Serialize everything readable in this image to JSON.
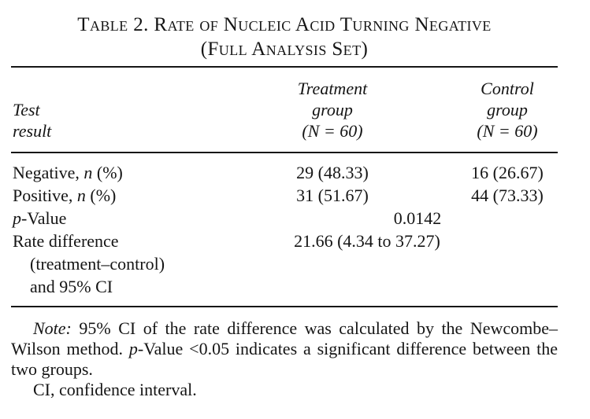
{
  "title": {
    "line1": "Table 2. Rate of Nucleic Acid Turning Negative",
    "line2": "(Full Analysis Set)"
  },
  "header": {
    "test_line1": "Test",
    "test_line2": "result",
    "treatment_line1": "Treatment",
    "treatment_line2": "group",
    "treatment_line3": "(N = 60)",
    "control_line1": "Control",
    "control_line2": "group",
    "control_line3": "(N = 60)"
  },
  "rows": {
    "negative": {
      "pre": "Negative, ",
      "it": "n",
      "post": " (%)",
      "treatment": "29 (48.33)",
      "control": "16 (26.67)"
    },
    "positive": {
      "pre": "Positive, ",
      "it": "n",
      "post": " (%)",
      "treatment": "31 (51.67)",
      "control": "44 (73.33)"
    },
    "pvalue": {
      "it": "p",
      "post": "-Value",
      "value": "0.0142"
    },
    "rate": {
      "line1": "Rate difference",
      "line2": "(treatment–control)",
      "line3": "and 95% CI",
      "value": "21.66 (4.34 to 37.27)"
    }
  },
  "notes": {
    "p1_it": "Note:",
    "p1_a": " 95% CI of the rate difference was calculated by the Newcombe–Wilson method. ",
    "p1_it2": "p",
    "p1_b": "-Value <0.05 indicates a significant difference between the two groups.",
    "p2": "CI, confidence interval."
  }
}
